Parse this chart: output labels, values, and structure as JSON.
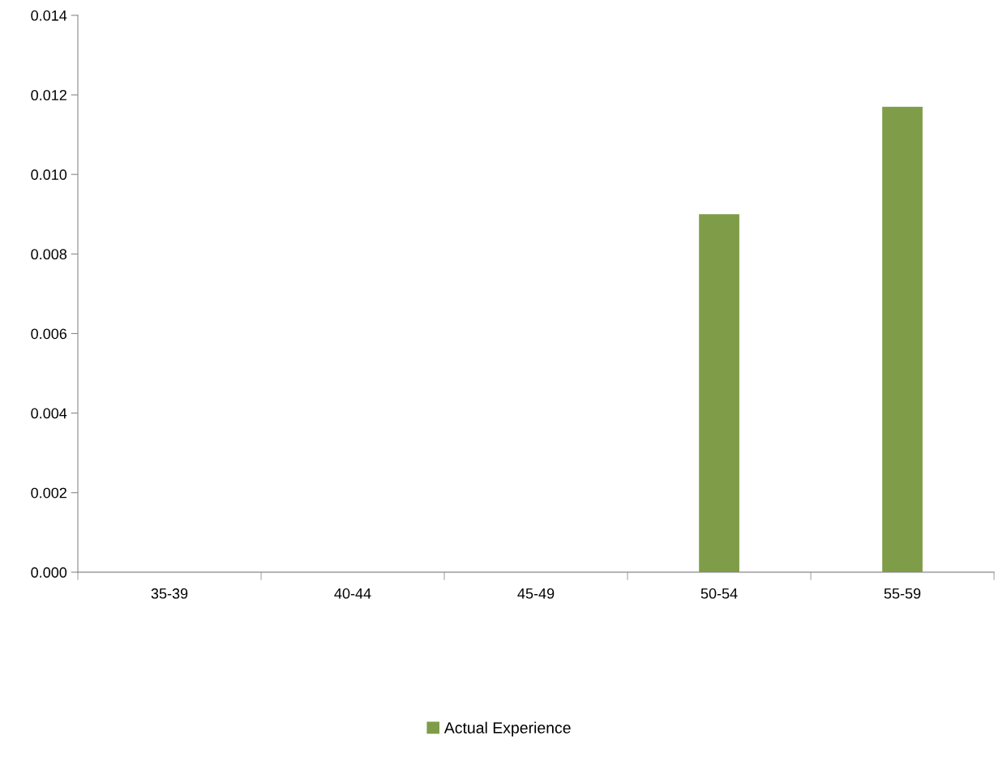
{
  "chart_data": {
    "type": "bar",
    "categories": [
      "35-39",
      "40-44",
      "45-49",
      "50-54",
      "55-59"
    ],
    "series": [
      {
        "name": "Actual Experience",
        "color": "#7f9c48",
        "values": [
          0,
          0,
          0,
          0.009,
          0.0117
        ]
      }
    ],
    "ylim": [
      0,
      0.014
    ],
    "yticks": [
      {
        "value": 0,
        "label": "0.000"
      },
      {
        "value": 0.002,
        "label": "0.002"
      },
      {
        "value": 0.004,
        "label": "0.004"
      },
      {
        "value": 0.006,
        "label": "0.006"
      },
      {
        "value": 0.008,
        "label": "0.008"
      },
      {
        "value": 0.01,
        "label": "0.010"
      },
      {
        "value": 0.012,
        "label": "0.012"
      },
      {
        "value": 0.014,
        "label": "0.014"
      }
    ],
    "grid": false,
    "legend": "bottom"
  }
}
